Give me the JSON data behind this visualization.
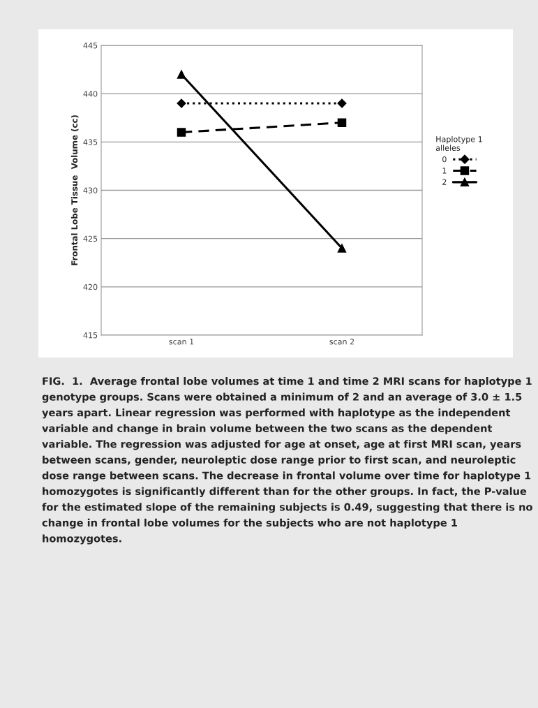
{
  "chart_data": {
    "type": "line",
    "categories": [
      "scan 1",
      "scan 2"
    ],
    "ylabel": "Frontal Lobe Tissue  Volume (cc)",
    "legend_title": "Haplotype 1\nalleles",
    "ylim": [
      415,
      445
    ],
    "yticks": [
      415,
      420,
      425,
      430,
      435,
      440,
      445
    ],
    "grid": "y",
    "legend": "right",
    "series": [
      {
        "name": "0",
        "color": "#000000",
        "values": [
          439,
          439
        ],
        "marker": "diamond",
        "line_style": "dotted"
      },
      {
        "name": "1",
        "color": "#000000",
        "values": [
          436,
          437
        ],
        "marker": "square",
        "line_style": "dashed"
      },
      {
        "name": "2",
        "color": "#000000",
        "values": [
          442,
          424
        ],
        "marker": "triangle",
        "line_style": "solid"
      }
    ],
    "annotations": [
      "FIG.  1.  Average frontal lobe volumes at time 1 and time 2 MRI scans for haplotype 1 genotype groups. Scans were obtained a minimum of 2 and an average of 3.0 ± 1.5 years apart. Linear regression was performed with haplotype as the independent variable and change in brain volume between the two scans as the dependent variable. The regression was adjusted for age at onset, age at first MRI scan, years between scans, gender, neuroleptic dose range prior to first scan, and neuroleptic dose range between scans. The decrease in frontal volume over time for haplotype 1 homozygotes is significantly different than for the other groups. In fact, the P-value for the estimated slope of the remaining subjects is 0.49, suggesting that there is no change in frontal lobe volumes for the subjects who are not haplotype 1 homozygotes."
    ]
  }
}
